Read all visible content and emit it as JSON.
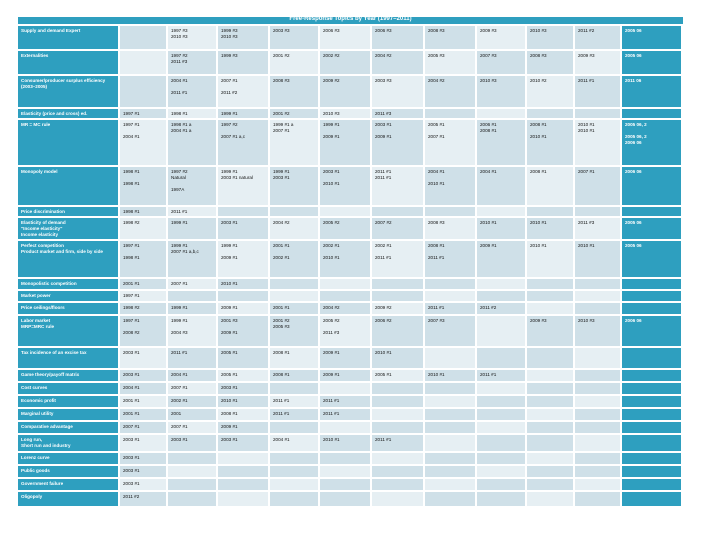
{
  "title": "Free-Response Topics by Year (1997–2011)",
  "colors": {
    "header_teal": "#2e9fbf",
    "cell_blue": "#cfe0e8",
    "cell_light": "#e6eff3"
  },
  "rows": [
    {
      "label": "Supply and demand Expert",
      "cells": [
        "",
        "1997 #3\n2010 #3",
        "1999 #3\n2010 #3",
        "2003 #3",
        "2006 #3",
        "2006 #3",
        "2008 #3",
        "2009 #3",
        "2010 #3",
        "2011 #2",
        "2005 06"
      ]
    },
    {
      "label": "Externalities",
      "cells": [
        "",
        "1997 #2\n2011 #3",
        "1999 #3",
        "2001 #2",
        "2002 #2",
        "2004 #2",
        "2005 #3",
        "2007 #3",
        "2008 #3",
        "2009 #3",
        "2005 06"
      ]
    },
    {
      "label": "Consumer/producer surplus efficiency\n(2003–2005)",
      "cells": [
        "",
        "2004 #1\n\n2011 #1",
        "2007 #1\n\n2011 #2",
        "2008 #3",
        "2009 #2",
        "2003 #3",
        "2004 #2",
        "2010 #3",
        "2010 #2",
        "2011 #1",
        "2011 06"
      ]
    },
    {
      "label": "Elasticity (price and cross) ed.",
      "cells": [
        "1997 #1",
        "1998 #1",
        "1999 #1",
        "2001 #2",
        "2010 #3",
        "2011 #3",
        "",
        "",
        "",
        "",
        ""
      ]
    },
    {
      "label": "MR = MC rule",
      "cells": [
        "1997 #1\n\n2004 #1",
        "1998 #1 a\n2004 #1 a",
        "1997 #2\n\n2007 #1 a,c",
        "1999 #1 a\n2007 #1",
        "1999 #1\n\n2009 #1",
        "2003 #1\n\n2009 #1",
        "2005 #1\n\n2007 #1",
        "2006 #1\n2008 #1",
        "2008 #1\n\n2010 #1",
        "2010 #1\n2010 #1",
        "2005 06, 2\n\n2005 06, 2\n2006 06"
      ]
    },
    {
      "label": "Monopoly model",
      "cells": [
        "1998 #1\n\n1998 #1",
        "1997 #2\nNatural\n\n1997A",
        "1999 #1\n2003 #1 natural",
        "1999 #1\n2003 #1",
        "2003 #1\n\n2010 #1",
        "2011 #1\n2011 #1",
        "2004 #1\n\n2010 #1",
        "2004 #1",
        "2008 #1",
        "2007 #1",
        "2006 06"
      ]
    },
    {
      "label": "Price discrimination",
      "cells": [
        "1998 #1",
        "2011 #1",
        "",
        "",
        "",
        "",
        "",
        "",
        "",
        "",
        ""
      ]
    },
    {
      "label": "Elasticity of demand\n\"Income elasticity\"\nIncome elasticity",
      "cells": [
        "1998 #2",
        "1999 #1",
        "2003 #1",
        "2004 #2",
        "2005 #2",
        "2007 #2",
        "2008 #3",
        "2010 #1",
        "2010 #1",
        "2011 #3",
        "2005 06"
      ]
    },
    {
      "label": "Perfect competition\nProduct market and firm, side by side",
      "cells": [
        "1997 #1\n\n1998 #1",
        "1999 #1\n2007 #1 a,b,c",
        "1999 #1\n\n2009 #1",
        "2001 #1\n\n2002 #1",
        "2002 #1\n\n2010 #1",
        "2002 #1\n\n2011 #1",
        "2008 #1\n\n2011 #1",
        "2009 #1",
        "2010 #1",
        "2010 #1",
        "2005 06"
      ]
    },
    {
      "label": "Monopolistic competition",
      "cells": [
        "2001 #1",
        "2007 #1",
        "2010 #1",
        "",
        "",
        "",
        "",
        "",
        "",
        "",
        ""
      ]
    },
    {
      "label": "Market power",
      "cells": [
        "1997 #1",
        "",
        "",
        "",
        "",
        "",
        "",
        "",
        "",
        "",
        ""
      ]
    },
    {
      "label": "Price ceilings/floors",
      "cells": [
        "1998 #2",
        "1999 #1",
        "2009 #1",
        "2001 #1",
        "2004 #2",
        "2009 #2",
        "2011 #1",
        "2011 #2",
        "",
        "",
        ""
      ]
    },
    {
      "label": "Labor market\nMRP=MRC rule",
      "cells": [
        "1997 #1\n\n2008 #2",
        "1999 #1\n\n2004 #3",
        "2001 #3\n\n2009 #1",
        "2001 #2\n2005 #3",
        "2005 #2\n\n2011 #3",
        "2006 #2",
        "2007 #3",
        "",
        "2009 #3",
        "2010 #3",
        "2006 06"
      ]
    },
    {
      "label": "Tax incidence of an excise tax",
      "cells": [
        "2003 #1",
        "2011 #1",
        "2005 #1",
        "2008 #1",
        "2009 #1",
        "2010 #1",
        "",
        "",
        "",
        "",
        ""
      ]
    },
    {
      "label": "Game theory/payoff matrix",
      "cells": [
        "2003 #1",
        "2004 #1",
        "2005 #1",
        "2008 #1",
        "2009 #1",
        "2005 #1",
        "2010 #1",
        "2011 #1",
        "",
        "",
        ""
      ]
    },
    {
      "label": "Cost curves",
      "cells": [
        "2004 #1",
        "2007 #1",
        "2003 #1",
        "",
        "",
        "",
        "",
        "",
        "",
        "",
        ""
      ]
    },
    {
      "label": "Economic profit",
      "cells": [
        "2001 #1",
        "2002 #1",
        "2010 #1",
        "2011 #1",
        "2011 #1",
        "",
        "",
        "",
        "",
        "",
        ""
      ]
    },
    {
      "label": "Marginal utility",
      "cells": [
        "2001 #1",
        "2001",
        "2008 #1",
        "2011 #1",
        "2011 #1",
        "",
        "",
        "",
        "",
        "",
        ""
      ]
    },
    {
      "label": "Comparative advantage",
      "cells": [
        "2007 #1",
        "2007 #1",
        "2009 #1",
        "",
        "",
        "",
        "",
        "",
        "",
        "",
        ""
      ]
    },
    {
      "label": "Long run,\nShort run and industry",
      "cells": [
        "2003 #1",
        "2003 #1",
        "2003 #1",
        "2004 #1",
        "2010 #1",
        "2011 #1",
        "",
        "",
        "",
        "",
        ""
      ]
    },
    {
      "label": "Lorenz curve",
      "cells": [
        "2003 #1",
        "",
        "",
        "",
        "",
        "",
        "",
        "",
        "",
        "",
        ""
      ]
    },
    {
      "label": "Public goods",
      "cells": [
        "2003 #1",
        "",
        "",
        "",
        "",
        "",
        "",
        "",
        "",
        "",
        ""
      ]
    },
    {
      "label": "Government failure",
      "cells": [
        "2003 #1",
        "",
        "",
        "",
        "",
        "",
        "",
        "",
        "",
        "",
        ""
      ]
    },
    {
      "label": "Oligopoly",
      "cells": [
        "2011 #2",
        "",
        "",
        "",
        "",
        "",
        "",
        "",
        "",
        "",
        ""
      ]
    }
  ]
}
